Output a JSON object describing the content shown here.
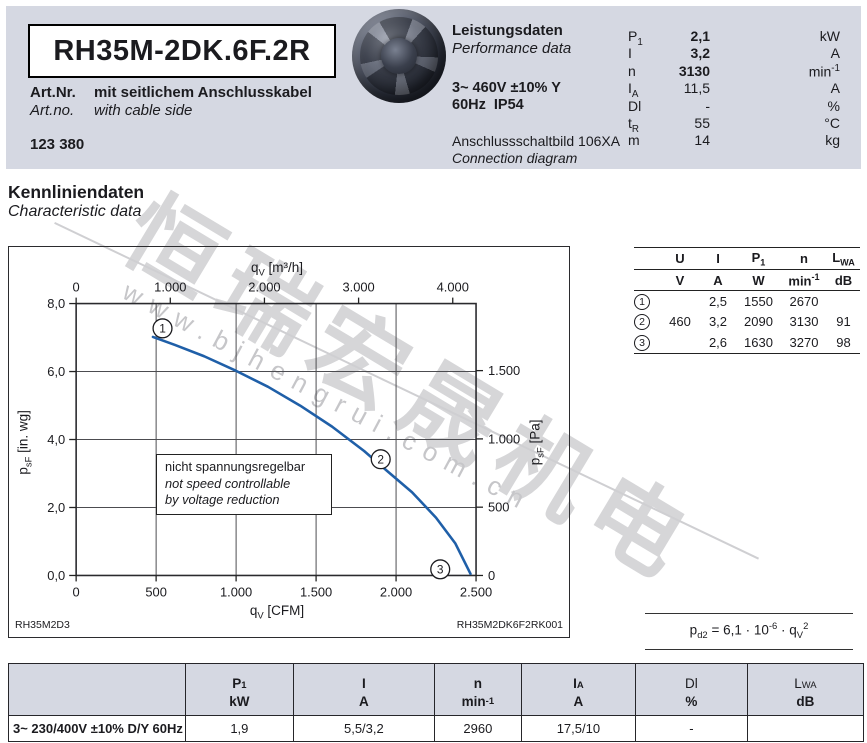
{
  "header": {
    "model": "RH35M-2DK.6F.2R",
    "art_label_de": "Art.Nr.",
    "art_desc_de": "mit seitlichem Anschlusskabel",
    "art_label_en": "Art.no.",
    "art_desc_en": "with cable side",
    "art_number": "123 380",
    "perf_title_de": "Leistungsdaten",
    "perf_title_en": "Performance data",
    "voltage": "3~ 460V ±10% Y",
    "freq_protection": "60Hz  IP54",
    "diagram_de": "Anschlussschaltbild 106XA",
    "diagram_en": "Connection diagram",
    "perf_list": [
      {
        "sym": "P_{1}",
        "val": "2,1",
        "unit": "kW",
        "bold": true
      },
      {
        "sym": "I",
        "val": "3,2",
        "unit": "A",
        "bold": true
      },
      {
        "sym": "n",
        "val": "3130",
        "unit": "min^{-1}",
        "bold": true
      },
      {
        "sym": "I_{A}",
        "val": "11,5",
        "unit": "A",
        "bold": false
      },
      {
        "sym": "Dl",
        "val": "-",
        "unit": "%",
        "bold": false
      },
      {
        "sym": "t_{R}",
        "val": "55",
        "unit": "°C",
        "bold": false
      },
      {
        "sym": "m",
        "val": "14",
        "unit": "kg",
        "bold": false
      }
    ]
  },
  "section": {
    "title_de": "Kennliniendaten",
    "title_en": "Characteristic data"
  },
  "chart_data": {
    "type": "line",
    "x_bottom": {
      "label": "q_{V} [CFM]",
      "min": 0,
      "max": 2500,
      "ticks": [
        [
          0,
          "0"
        ],
        [
          500,
          "500"
        ],
        [
          1000,
          "1.000"
        ],
        [
          1500,
          "1.500"
        ],
        [
          2000,
          "2.000"
        ],
        [
          2500,
          "2.500"
        ]
      ]
    },
    "x_top": {
      "label": "q_{V} [m³/h]",
      "unit_to_cfm": 0.58858,
      "ticks": [
        [
          0,
          "0"
        ],
        [
          1000,
          "1.000"
        ],
        [
          2000,
          "2.000"
        ],
        [
          3000,
          "3.000"
        ],
        [
          4000,
          "4.000"
        ]
      ]
    },
    "y_left": {
      "label": "p_{sF} [in. wg]",
      "min": 0,
      "max": 8,
      "ticks": [
        [
          0,
          "0,0"
        ],
        [
          2,
          "2,0"
        ],
        [
          4,
          "4,0"
        ],
        [
          6,
          "6,0"
        ],
        [
          8,
          "8,0"
        ]
      ]
    },
    "y_right": {
      "label": "p_{sF} [Pa]",
      "max_pa": 1991,
      "ticks": [
        [
          0,
          "0"
        ],
        [
          500,
          "500"
        ],
        [
          1000,
          "1.000"
        ],
        [
          1500,
          "1.500"
        ]
      ]
    },
    "grid_x_cfm": [
      500,
      1000,
      1500,
      2000
    ],
    "grid_y_inwg": [
      2,
      4,
      6
    ],
    "curve_color": "#1f5fa8",
    "curve_points_cfm_inwg": [
      [
        480,
        7.02
      ],
      [
        620,
        6.78
      ],
      [
        800,
        6.45
      ],
      [
        1000,
        6.02
      ],
      [
        1200,
        5.55
      ],
      [
        1400,
        5.0
      ],
      [
        1600,
        4.38
      ],
      [
        1800,
        3.66
      ],
      [
        1950,
        3.05
      ],
      [
        2100,
        2.45
      ],
      [
        2250,
        1.7
      ],
      [
        2370,
        0.95
      ],
      [
        2465,
        0.05
      ]
    ],
    "markers": [
      {
        "label": "1",
        "cfm": 540,
        "inwg": 7.27
      },
      {
        "label": "2",
        "cfm": 1904,
        "inwg": 3.42
      },
      {
        "label": "3",
        "cfm": 2276,
        "inwg": 0.18
      }
    ],
    "note_lines": [
      "nicht spannungsregelbar",
      "not speed controllable",
      "by voltage reduction"
    ],
    "id_left": "RH35M2D3",
    "id_right": "RH35M2DK6F2RK001"
  },
  "mini_table": {
    "headers": [
      "U",
      "I",
      "P_{1}",
      "n",
      "L_{WA}"
    ],
    "units": [
      "V",
      "A",
      "W",
      "min^{-1}",
      "dB"
    ],
    "rows": [
      {
        "num": "1",
        "bold": false,
        "values": [
          "",
          "2,5",
          "1550",
          "2670",
          ""
        ]
      },
      {
        "num": "2",
        "bold": true,
        "values": [
          "460",
          "3,2",
          "2090",
          "3130",
          "91"
        ]
      },
      {
        "num": "3",
        "bold": false,
        "values": [
          "",
          "2,6",
          "1630",
          "3270",
          "98"
        ]
      }
    ]
  },
  "formula": "p_{d2} = 6,1 · 10^{-6} · q_{V}^{2}",
  "bottom_table": {
    "columns": [
      {
        "sym": "P_{1}",
        "unit": "kW",
        "bold": true
      },
      {
        "sym": "I",
        "unit": "A",
        "bold": true
      },
      {
        "sym": "n",
        "unit": "min^{-1}",
        "bold": true
      },
      {
        "sym": "I_{A}",
        "unit": "A",
        "bold": true
      },
      {
        "sym": "Dl",
        "unit": "%",
        "bold": false
      },
      {
        "sym": "L_{WA}",
        "unit": "dB",
        "bold": false
      }
    ],
    "row_label": "3~ 230/400V ±10% D/Y 60Hz",
    "row_values": [
      "1,9",
      "5,5/3,2",
      "2960",
      "17,5/10",
      "-",
      ""
    ]
  },
  "watermark": {
    "cn": "恒瑞宏晟机电",
    "url": "www.bjhengrui.com.cn"
  },
  "colors": {
    "band": "#d5d8e2",
    "curve": "#1f5fa8",
    "text": "#1b1b1f",
    "watermark": "#d6d6d8"
  }
}
